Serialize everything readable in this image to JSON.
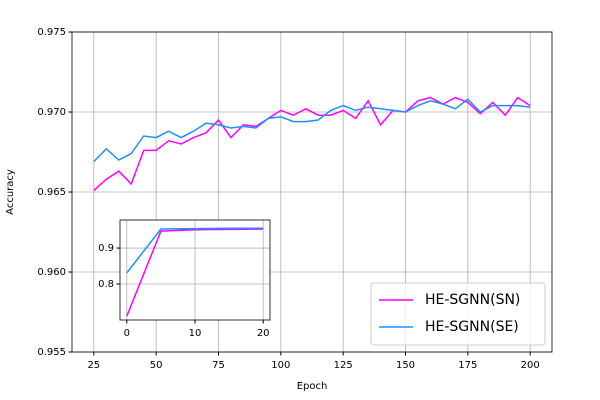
{
  "chart_data": [
    {
      "type": "line",
      "xlabel": "Epoch",
      "ylabel": "Accuracy",
      "x": [
        25,
        30,
        35,
        40,
        45,
        50,
        55,
        60,
        65,
        70,
        75,
        80,
        85,
        90,
        95,
        100,
        105,
        110,
        115,
        120,
        125,
        130,
        135,
        140,
        145,
        150,
        155,
        160,
        165,
        170,
        175,
        180,
        185,
        190,
        195,
        200
      ],
      "series": [
        {
          "name": "HE-SGNN(SN)",
          "color": "#ff00ff",
          "values": [
            0.9651,
            0.9658,
            0.9663,
            0.9655,
            0.9676,
            0.9676,
            0.9682,
            0.968,
            0.9684,
            0.9687,
            0.9695,
            0.9684,
            0.9692,
            0.9691,
            0.9696,
            0.9701,
            0.9698,
            0.9702,
            0.9698,
            0.9698,
            0.9701,
            0.9696,
            0.9707,
            0.9692,
            0.9701,
            0.97,
            0.9707,
            0.9709,
            0.9705,
            0.9709,
            0.9706,
            0.9699,
            0.9706,
            0.9698,
            0.9709,
            0.9704
          ]
        },
        {
          "name": "HE-SGNN(SE)",
          "color": "#1e90ff",
          "values": [
            0.9669,
            0.9677,
            0.967,
            0.9674,
            0.9685,
            0.9684,
            0.9688,
            0.9684,
            0.9688,
            0.9693,
            0.9692,
            0.969,
            0.9691,
            0.969,
            0.9696,
            0.9697,
            0.9694,
            0.9694,
            0.9695,
            0.9701,
            0.9704,
            0.9701,
            0.9703,
            0.9702,
            0.9701,
            0.97,
            0.9704,
            0.9707,
            0.9705,
            0.9702,
            0.9708,
            0.97,
            0.9704,
            0.9704,
            0.9704,
            0.9703
          ]
        }
      ],
      "xlim": [
        16.25,
        208.75
      ],
      "xticks": [
        25,
        50,
        75,
        100,
        125,
        150,
        175,
        200
      ],
      "ylim": [
        0.955,
        0.975
      ],
      "yticks": [
        0.955,
        {
          "value": 0.96,
          "label": "0.960"
        },
        0.965,
        {
          "value": 0.97,
          "label": "0.970"
        },
        0.975
      ],
      "grid": true,
      "legend": "lower right"
    },
    {
      "type": "line",
      "x": [
        0,
        5,
        10,
        15,
        20
      ],
      "series": [
        {
          "color": "#ff00ff",
          "values": [
            0.711,
            0.947,
            0.951,
            0.952,
            0.953
          ]
        },
        {
          "color": "#1e90ff",
          "values": [
            0.831,
            0.953,
            0.954,
            0.955,
            0.955
          ]
        }
      ],
      "xlim": [
        -1,
        21
      ],
      "xticks": [
        0,
        10,
        20
      ],
      "ylim": [
        0.7,
        0.978
      ],
      "yticks": [
        0.8,
        0.9
      ],
      "grid": true
    }
  ]
}
